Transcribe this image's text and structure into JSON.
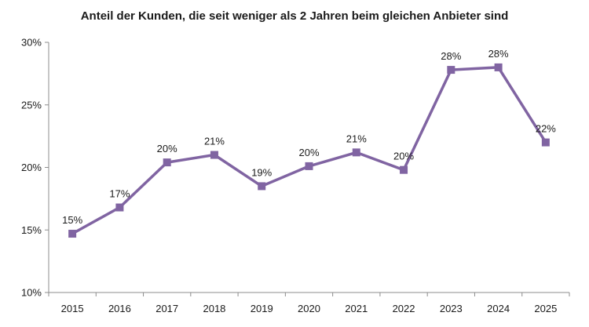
{
  "chart_data": {
    "type": "line",
    "title": "Anteil der Kunden, die seit weniger als 2 Jahren beim gleichen Anbieter sind",
    "xlabel": "",
    "ylabel": "",
    "ylim": [
      10,
      30
    ],
    "yticks": [
      10,
      15,
      20,
      25,
      30
    ],
    "ytick_labels": [
      "10%",
      "15%",
      "20%",
      "25%",
      "30%"
    ],
    "grid": false,
    "legend": "none",
    "categories": [
      "2015",
      "2016",
      "2017",
      "2018",
      "2019",
      "2020",
      "2021",
      "2022",
      "2023",
      "2024",
      "2025"
    ],
    "series": [
      {
        "name": "Anteil der Kunden",
        "color": "#8064a2",
        "marker": "square",
        "values": [
          14.7,
          16.8,
          20.4,
          21.0,
          18.5,
          20.1,
          21.2,
          19.8,
          27.8,
          28.0,
          22.0
        ],
        "labels": [
          "15%",
          "17%",
          "20%",
          "21%",
          "19%",
          "20%",
          "21%",
          "20%",
          "28%",
          "28%",
          "22%"
        ]
      }
    ]
  }
}
